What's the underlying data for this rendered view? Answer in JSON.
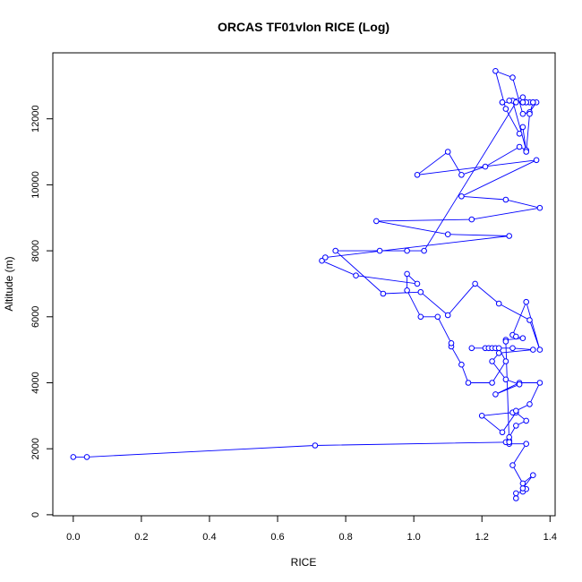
{
  "chart_data": {
    "type": "line",
    "title": "ORCAS TF01vlon RICE (Log)",
    "xlabel": "RICE",
    "ylabel": "Altitude (m)",
    "xlim": [
      -0.06,
      1.415
    ],
    "ylim": [
      -30,
      14000
    ],
    "xticks": [
      0.0,
      0.2,
      0.4,
      0.6,
      0.8,
      1.0,
      1.2,
      1.4
    ],
    "xtick_labels": [
      "0.0",
      "0.2",
      "0.4",
      "0.6",
      "0.8",
      "1.0",
      "1.2",
      "1.4"
    ],
    "yticks": [
      0,
      2000,
      4000,
      6000,
      8000,
      10000,
      12000
    ],
    "ytick_labels": [
      "0",
      "2000",
      "4000",
      "6000",
      "8000",
      "10000",
      "12000"
    ],
    "grid": false,
    "line_color": "#0000ff",
    "marker": "open-circle",
    "series": [
      {
        "x": [
          1.3,
          1.3,
          1.32,
          1.33,
          1.32,
          1.35,
          1.32,
          1.29,
          1.33,
          1.28,
          1.27,
          1.28,
          1.28,
          1.3,
          1.33,
          1.3,
          1.26,
          1.2,
          1.29,
          1.3,
          1.34,
          1.37,
          1.31,
          1.24,
          1.31,
          1.27,
          1.23,
          1.25,
          1.35,
          1.29,
          1.17,
          1.21,
          1.22,
          1.23,
          1.24,
          1.25,
          1.27,
          1.23,
          1.16,
          1.14,
          1.11,
          1.11,
          1.07,
          1.02,
          0.98,
          0.98,
          1.01,
          0.83,
          0.73,
          0.74,
          1.28,
          1.1,
          0.89,
          1.17,
          1.37,
          1.27,
          1.14,
          1.36,
          1.01,
          1.1,
          1.14,
          1.21,
          1.31,
          1.33,
          1.29,
          1.28,
          1.32,
          1.32,
          1.33,
          1.34,
          1.32,
          1.36,
          1.34,
          1.32,
          1.29,
          1.24,
          1.27,
          1.31,
          1.32,
          1.33,
          1.34,
          1.35,
          1.35,
          1.33,
          1.26,
          1.32,
          1.26,
          1.3,
          1.03,
          0.98,
          0.9,
          0.77,
          0.91,
          1.02,
          1.1,
          1.18,
          1.25,
          1.34,
          1.37,
          1.33,
          1.29,
          1.3,
          1.32,
          1.27,
          1.27,
          1.28,
          0.71,
          0.04,
          0.0
        ],
        "y": [
          500,
          650,
          700,
          780,
          800,
          1200,
          950,
          1500,
          2150,
          2150,
          2200,
          2250,
          2350,
          2700,
          2850,
          3100,
          2500,
          3000,
          3100,
          3150,
          3350,
          4000,
          4000,
          3650,
          3950,
          4100,
          4650,
          4900,
          5000,
          5050,
          5050,
          5050,
          5050,
          5050,
          5050,
          5050,
          4650,
          4000,
          4000,
          4550,
          5100,
          5200,
          6000,
          6000,
          6800,
          7300,
          7000,
          7250,
          7700,
          7800,
          8450,
          8500,
          8900,
          8950,
          9300,
          9550,
          9650,
          10750,
          10300,
          11000,
          10300,
          10550,
          11150,
          11050,
          12550,
          12550,
          12650,
          12500,
          12500,
          12500,
          12500,
          12500,
          12200,
          12150,
          13250,
          13450,
          12300,
          11550,
          11750,
          11000,
          12150,
          12500,
          12500,
          12500,
          12500,
          12500,
          12500,
          12500,
          8000,
          8000,
          8000,
          8000,
          6700,
          6750,
          6050,
          7000,
          6400,
          5900,
          5000,
          6450,
          5450,
          5400,
          5350,
          5300,
          5250,
          2200,
          2100,
          1750,
          1750
        ]
      }
    ]
  }
}
